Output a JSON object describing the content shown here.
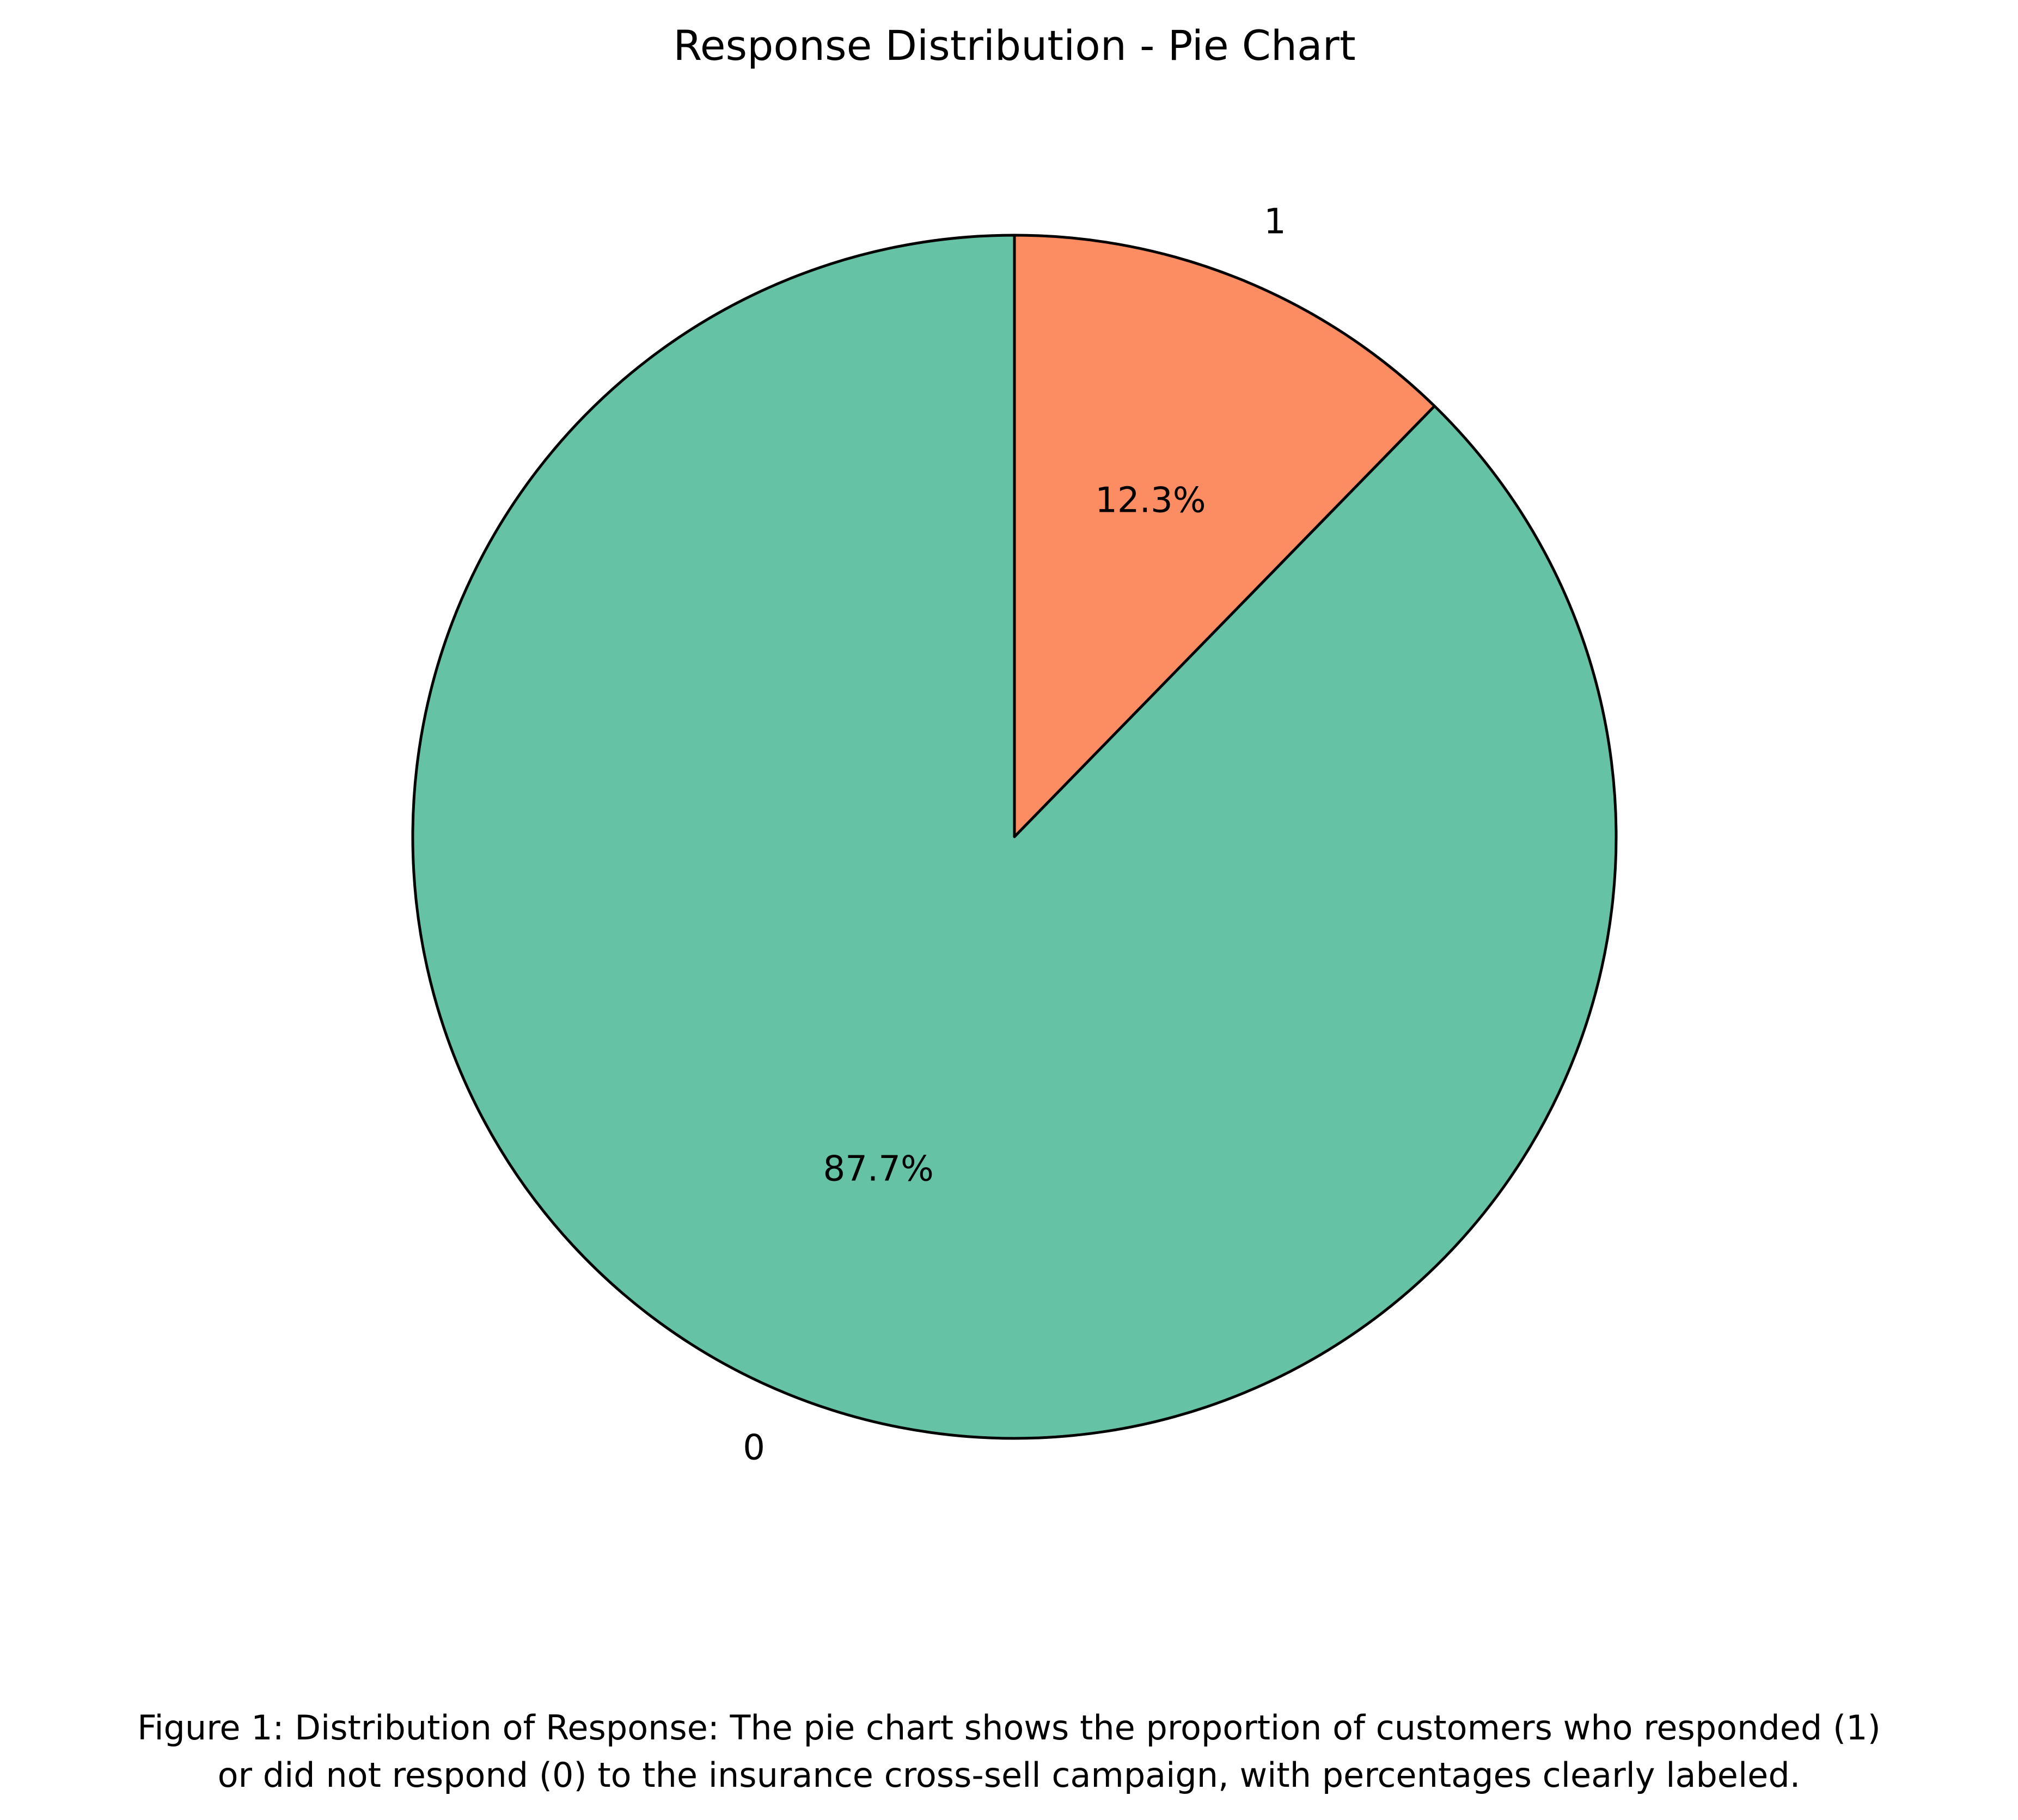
{
  "chart_data": {
    "type": "pie",
    "title": "Response Distribution - Pie Chart",
    "start_angle_deg": 90,
    "direction": "clockwise",
    "slices": [
      {
        "label": "1",
        "value": 12.3,
        "pct_label": "12.3%",
        "color": "#fc8d62"
      },
      {
        "label": "0",
        "value": 87.7,
        "pct_label": "87.7%",
        "color": "#66c2a5"
      }
    ],
    "edge_color": "#000000"
  },
  "caption": {
    "line1": "Figure 1: Distribution of Response: The pie chart shows the proportion of customers who responded (1)",
    "line2": "or did not respond (0) to the insurance cross-sell campaign, with percentages clearly labeled."
  }
}
